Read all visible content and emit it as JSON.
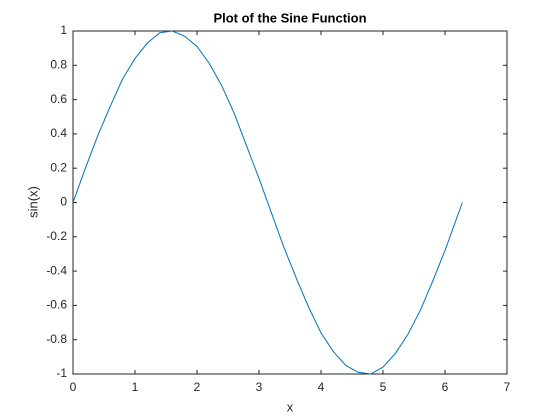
{
  "chart_data": {
    "type": "line",
    "title": "Plot of the Sine Function",
    "x_label": "x",
    "y_label": "sin(x)",
    "x": [
      0,
      0.2,
      0.4,
      0.6,
      0.8,
      1.0,
      1.2,
      1.4,
      1.6,
      1.8,
      2.0,
      2.2,
      2.4,
      2.6,
      2.8,
      3.0,
      3.2,
      3.4,
      3.6,
      3.8,
      4.0,
      4.2,
      4.4,
      4.6,
      4.8,
      5.0,
      5.2,
      5.4,
      5.6,
      5.8,
      6.0,
      6.2,
      6.28
    ],
    "series": [
      {
        "color": "#0072bd",
        "values": [
          0,
          0.2,
          0.39,
          0.56,
          0.72,
          0.84,
          0.93,
          0.99,
          1.0,
          0.97,
          0.91,
          0.81,
          0.68,
          0.52,
          0.33,
          0.14,
          -0.06,
          -0.26,
          -0.44,
          -0.61,
          -0.76,
          -0.87,
          -0.95,
          -0.99,
          -1.0,
          -0.96,
          -0.88,
          -0.77,
          -0.63,
          -0.46,
          -0.28,
          -0.08,
          0.0
        ]
      }
    ],
    "xlim": [
      0,
      7
    ],
    "xticks": [
      0,
      1,
      2,
      3,
      4,
      5,
      6,
      7
    ],
    "ylim": [
      -1,
      1
    ],
    "yticks": [
      -1,
      -0.8,
      -0.6,
      -0.4,
      -0.2,
      0,
      0.2,
      0.4,
      0.6,
      0.8,
      1
    ],
    "grid": false
  }
}
